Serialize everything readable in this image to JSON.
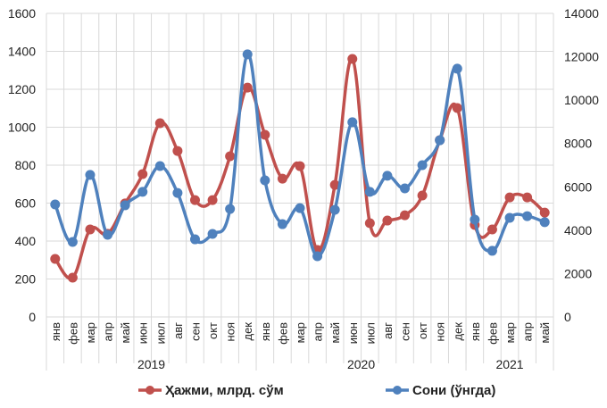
{
  "chart_data": {
    "type": "line",
    "title": "",
    "xlabel": "",
    "ylabel": "",
    "y2label": "",
    "grid": true,
    "legend_position": "bottom",
    "ylim": [
      0,
      1600
    ],
    "yticks": [
      0,
      200,
      400,
      600,
      800,
      1000,
      1200,
      1400,
      1600
    ],
    "y2lim": [
      0,
      14000
    ],
    "y2ticks": [
      0,
      2000,
      4000,
      6000,
      8000,
      10000,
      12000,
      14000
    ],
    "categories": [
      "янв",
      "фев",
      "мар",
      "апр",
      "май",
      "июн",
      "июл",
      "авг",
      "сен",
      "окт",
      "ноя",
      "дек",
      "янв",
      "фев",
      "мар",
      "апр",
      "май",
      "июн",
      "июл",
      "авг",
      "сен",
      "окт",
      "ноя",
      "дек",
      "янв",
      "фев",
      "мар",
      "апр",
      "май"
    ],
    "groups": [
      {
        "label": "2019",
        "count": 12
      },
      {
        "label": "2020",
        "count": 12
      },
      {
        "label": "2021",
        "count": 5
      }
    ],
    "series": [
      {
        "name": "Ҳажми, млрд. сўм",
        "axis": "left",
        "color": "#C0504D",
        "values": [
          306,
          207,
          461,
          438,
          598,
          753,
          1021,
          875,
          616,
          616,
          847,
          1209,
          960,
          729,
          795,
          353,
          696,
          1360,
          494,
          508,
          536,
          640,
          932,
          1101,
          485,
          461,
          630,
          630,
          550
        ]
      },
      {
        "name": "Сони (ўнгда)",
        "axis": "right",
        "color": "#4F81BD",
        "values": [
          5190,
          3460,
          6550,
          3790,
          5150,
          5770,
          6960,
          5720,
          3580,
          3830,
          4980,
          12110,
          6300,
          4280,
          5020,
          2800,
          4940,
          8980,
          5770,
          6510,
          5930,
          7000,
          8150,
          11450,
          4490,
          3050,
          4570,
          4650,
          4370
        ]
      }
    ]
  }
}
